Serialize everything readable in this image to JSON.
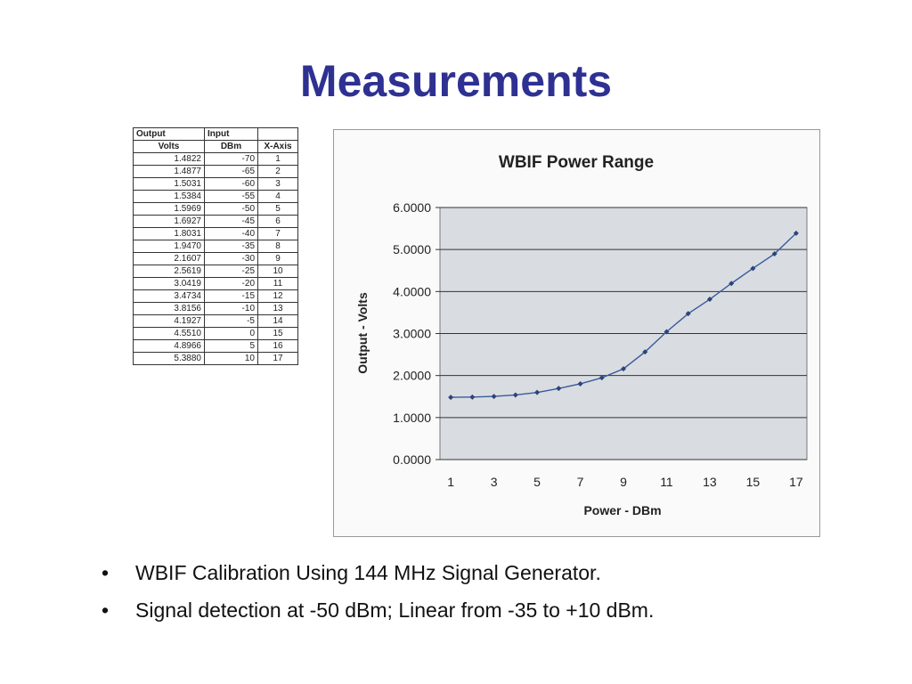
{
  "title": "Measurements",
  "table": {
    "headers": [
      [
        "Output",
        "Input",
        ""
      ],
      [
        "Volts",
        "DBm",
        "X-Axis"
      ]
    ],
    "rows": [
      [
        "1.4822",
        "-70",
        "1"
      ],
      [
        "1.4877",
        "-65",
        "2"
      ],
      [
        "1.5031",
        "-60",
        "3"
      ],
      [
        "1.5384",
        "-55",
        "4"
      ],
      [
        "1.5969",
        "-50",
        "5"
      ],
      [
        "1.6927",
        "-45",
        "6"
      ],
      [
        "1.8031",
        "-40",
        "7"
      ],
      [
        "1.9470",
        "-35",
        "8"
      ],
      [
        "2.1607",
        "-30",
        "9"
      ],
      [
        "2.5619",
        "-25",
        "10"
      ],
      [
        "3.0419",
        "-20",
        "11"
      ],
      [
        "3.4734",
        "-15",
        "12"
      ],
      [
        "3.8156",
        "-10",
        "13"
      ],
      [
        "4.1927",
        "-5",
        "14"
      ],
      [
        "4.5510",
        "0",
        "15"
      ],
      [
        "4.8966",
        "5",
        "16"
      ],
      [
        "5.3880",
        "10",
        "17"
      ]
    ]
  },
  "chart_data": {
    "type": "line",
    "title": "WBIF Power Range",
    "xlabel": "Power - DBm",
    "ylabel": "Output - Volts",
    "x": [
      1,
      2,
      3,
      4,
      5,
      6,
      7,
      8,
      9,
      10,
      11,
      12,
      13,
      14,
      15,
      16,
      17
    ],
    "series": [
      {
        "values": [
          1.4822,
          1.4877,
          1.5031,
          1.5384,
          1.5969,
          1.6927,
          1.8031,
          1.947,
          2.1607,
          2.5619,
          3.0419,
          3.4734,
          3.8156,
          4.1927,
          4.551,
          4.8966,
          5.388
        ]
      }
    ],
    "xlim": [
      0.5,
      17.5
    ],
    "ylim": [
      0,
      6
    ],
    "x_ticks": [
      "1",
      "3",
      "5",
      "7",
      "9",
      "11",
      "13",
      "15",
      "17"
    ],
    "y_ticks": [
      "0.0000",
      "1.0000",
      "2.0000",
      "3.0000",
      "4.0000",
      "5.0000",
      "6.0000"
    ],
    "grid": true,
    "colors": {
      "line": "#3a5a9c",
      "marker": "#2c4478",
      "plot_bg": "#d9dde1",
      "grid": "#333333"
    }
  },
  "bullets": [
    "WBIF Calibration Using 144 MHz Signal Generator.",
    "Signal detection at -50 dBm; Linear from -35 to +10 dBm."
  ],
  "bullet_char": "•"
}
